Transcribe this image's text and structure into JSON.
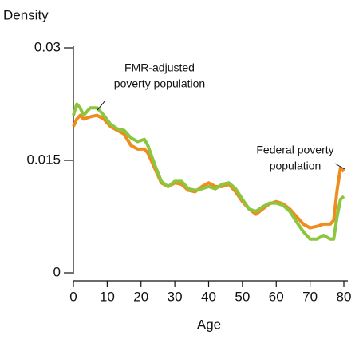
{
  "chart_data": {
    "type": "line",
    "xlabel": "Age",
    "ylabel": "Density",
    "x": [
      0,
      1,
      2,
      3,
      5,
      7,
      9,
      11,
      13,
      15,
      17,
      19,
      21,
      22,
      24,
      26,
      28,
      30,
      32,
      34,
      36,
      38,
      40,
      42,
      44,
      46,
      48,
      50,
      52,
      54,
      56,
      58,
      60,
      62,
      64,
      66,
      68,
      70,
      72,
      74,
      76,
      77,
      78,
      79,
      80
    ],
    "series": [
      {
        "name": "Federal poverty population",
        "color": "#f08c1e",
        "values": [
          0.0195,
          0.0205,
          0.021,
          0.0205,
          0.0208,
          0.021,
          0.0205,
          0.0195,
          0.019,
          0.0185,
          0.017,
          0.0165,
          0.0165,
          0.016,
          0.014,
          0.012,
          0.0115,
          0.012,
          0.0118,
          0.011,
          0.0108,
          0.0115,
          0.012,
          0.0115,
          0.0115,
          0.0118,
          0.0108,
          0.0095,
          0.0085,
          0.0078,
          0.0085,
          0.0092,
          0.0095,
          0.0092,
          0.0085,
          0.0075,
          0.0065,
          0.006,
          0.0062,
          0.0065,
          0.0065,
          0.007,
          0.011,
          0.014,
          0.0135
        ]
      },
      {
        "name": "FMR-adjusted poverty population",
        "color": "#8cc63f",
        "values": [
          0.021,
          0.0225,
          0.022,
          0.021,
          0.022,
          0.022,
          0.021,
          0.0198,
          0.0192,
          0.019,
          0.018,
          0.0175,
          0.0178,
          0.017,
          0.0145,
          0.0122,
          0.0115,
          0.0122,
          0.0122,
          0.0112,
          0.011,
          0.0112,
          0.0115,
          0.0112,
          0.0118,
          0.012,
          0.0112,
          0.0098,
          0.0085,
          0.0082,
          0.0088,
          0.0093,
          0.0093,
          0.009,
          0.0082,
          0.0068,
          0.0055,
          0.0045,
          0.0045,
          0.005,
          0.0045,
          0.0045,
          0.0075,
          0.0098,
          0.0102
        ]
      }
    ],
    "annotations": [
      [
        "FMR-adjusted",
        "poverty population"
      ],
      [
        "Federal poverty",
        "population"
      ]
    ],
    "xlim": [
      0,
      80
    ],
    "xticks": [
      0,
      10,
      20,
      30,
      40,
      50,
      60,
      70,
      80
    ],
    "ylim": [
      0,
      0.03
    ],
    "yticks": [
      0,
      0.015,
      0.03
    ]
  }
}
